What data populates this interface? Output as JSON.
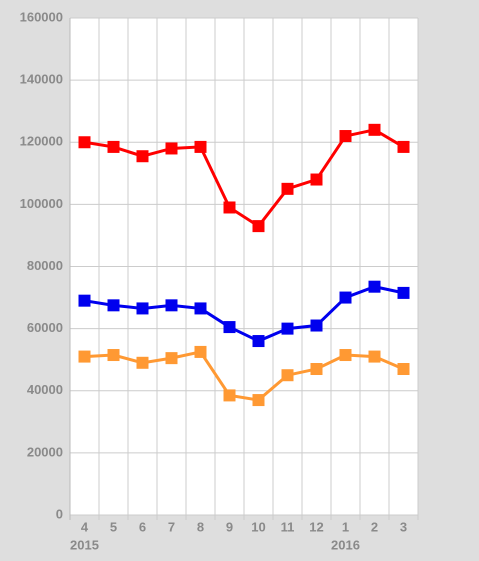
{
  "chart_data": {
    "type": "line",
    "categories": [
      "4",
      "5",
      "6",
      "7",
      "8",
      "9",
      "10",
      "11",
      "12",
      "1",
      "2",
      "3"
    ],
    "x_group_labels": [
      "2015",
      null,
      null,
      null,
      null,
      null,
      null,
      null,
      null,
      "2016",
      null,
      null
    ],
    "series": [
      {
        "color": "#ff0000",
        "values": [
          120000,
          118500,
          115500,
          118000,
          118500,
          99000,
          93000,
          105000,
          108000,
          122000,
          124000,
          118500
        ]
      },
      {
        "color": "#0000ee",
        "values": [
          69000,
          67500,
          66500,
          67500,
          66500,
          60500,
          56000,
          60000,
          61000,
          70000,
          73500,
          71500
        ]
      },
      {
        "color": "#ff9933",
        "values": [
          51000,
          51500,
          49000,
          50500,
          52500,
          38500,
          37000,
          45000,
          47000,
          51500,
          51000,
          47000
        ]
      }
    ],
    "ylim": [
      0,
      160000
    ],
    "yticks": [
      0,
      20000,
      40000,
      60000,
      80000,
      100000,
      120000,
      140000,
      160000
    ],
    "grid": true
  }
}
